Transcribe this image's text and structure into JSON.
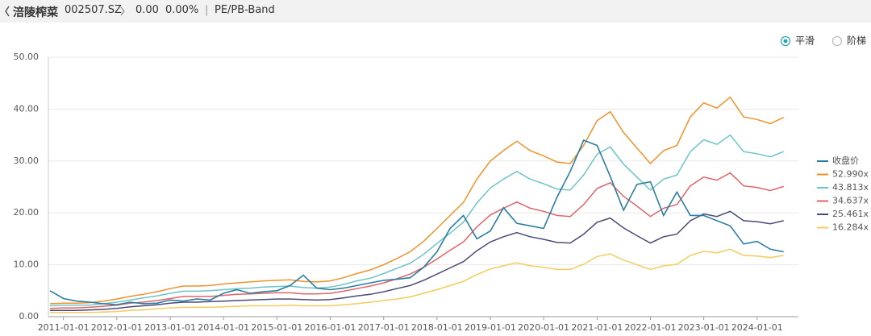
{
  "header": {
    "name": "涪陵榨菜",
    "code": "002507.SZ",
    "change": "0.00",
    "change_pct": "0.00%",
    "tab": "PE/PB-Band"
  },
  "options": {
    "smooth": "平滑",
    "step": "阶梯"
  },
  "chart_data": {
    "type": "line",
    "x": [
      "2010-10-01",
      "2011-01-01",
      "2011-04-01",
      "2011-07-01",
      "2011-10-01",
      "2012-01-01",
      "2012-04-01",
      "2012-07-01",
      "2012-10-01",
      "2013-01-01",
      "2013-04-01",
      "2013-07-01",
      "2013-10-01",
      "2014-01-01",
      "2014-04-01",
      "2014-07-01",
      "2014-10-01",
      "2015-01-01",
      "2015-04-01",
      "2015-07-01",
      "2015-10-01",
      "2016-01-01",
      "2016-04-01",
      "2016-07-01",
      "2016-10-01",
      "2017-01-01",
      "2017-04-01",
      "2017-07-01",
      "2017-10-01",
      "2018-01-01",
      "2018-04-01",
      "2018-07-01",
      "2018-10-01",
      "2019-01-01",
      "2019-04-01",
      "2019-07-01",
      "2019-10-01",
      "2020-01-01",
      "2020-04-01",
      "2020-07-01",
      "2020-10-01",
      "2021-01-01",
      "2021-04-01",
      "2021-07-01",
      "2021-10-01",
      "2022-01-01",
      "2022-04-01",
      "2022-07-01",
      "2022-10-01",
      "2023-01-01",
      "2023-04-01",
      "2023-07-01",
      "2023-10-01",
      "2024-01-01",
      "2024-04-01",
      "2024-07-01"
    ],
    "xlim": [
      "2010-09-20",
      "2024-10-10"
    ],
    "xticks": [
      "2011-01-01",
      "2012-01-01",
      "2013-01-01",
      "2014-01-01",
      "2015-01-01",
      "2016-01-01",
      "2017-01-01",
      "2018-01-01",
      "2019-01-01",
      "2020-01-01",
      "2021-01-01",
      "2022-01-01",
      "2023-01-01",
      "2024-01-01"
    ],
    "ylim": [
      0,
      50
    ],
    "yticks": [
      {
        "value": 0,
        "label": "0.00"
      },
      {
        "value": 10,
        "label": "10.00"
      },
      {
        "value": 20,
        "label": "20.00"
      },
      {
        "value": 30,
        "label": "30.00"
      },
      {
        "value": 40,
        "label": "40.00"
      },
      {
        "value": 50,
        "label": "50.00"
      }
    ],
    "grid": true,
    "legend": "right",
    "series": [
      {
        "name": "收盘价",
        "color": "#2b7ea1",
        "values": [
          5.0,
          3.5,
          3.0,
          2.8,
          2.5,
          2.3,
          2.8,
          2.5,
          2.6,
          3.2,
          3.0,
          3.4,
          3.2,
          4.5,
          5.2,
          4.5,
          4.8,
          5.0,
          6.0,
          8.0,
          5.5,
          5.2,
          5.5,
          6.0,
          6.5,
          7.0,
          7.2,
          7.5,
          9.5,
          12.5,
          17.0,
          19.5,
          15.0,
          16.5,
          21.0,
          18.0,
          17.5,
          17.0,
          23.0,
          28.0,
          34.0,
          33.0,
          27.0,
          20.5,
          25.5,
          26.0,
          19.5,
          24.0,
          19.5,
          19.5,
          18.5,
          17.5,
          14.0,
          14.5,
          13.0,
          12.5
        ]
      },
      {
        "name": "52.990x",
        "color": "#f0922b",
        "values": [
          2.5,
          2.6,
          2.6,
          2.7,
          3.0,
          3.4,
          3.9,
          4.3,
          4.8,
          5.4,
          5.9,
          5.9,
          6.0,
          6.3,
          6.5,
          6.7,
          6.9,
          7.0,
          7.1,
          6.8,
          6.7,
          6.9,
          7.5,
          8.3,
          9.0,
          10.0,
          11.2,
          12.5,
          14.5,
          17.0,
          19.5,
          22.0,
          26.5,
          30.0,
          32.0,
          33.8,
          32.0,
          31.0,
          29.8,
          29.5,
          33.0,
          37.8,
          39.5,
          35.5,
          32.5,
          29.5,
          32.0,
          33.0,
          38.5,
          41.2,
          40.2,
          42.3,
          38.5,
          38.0,
          37.2,
          38.4
        ]
      },
      {
        "name": "43.813x",
        "color": "#6cc4c8",
        "values": [
          2.1,
          2.2,
          2.2,
          2.2,
          2.5,
          2.8,
          3.2,
          3.6,
          4.0,
          4.5,
          4.9,
          4.9,
          5.0,
          5.2,
          5.4,
          5.5,
          5.7,
          5.8,
          5.9,
          5.6,
          5.5,
          5.7,
          6.2,
          6.9,
          7.4,
          8.3,
          9.3,
          10.3,
          12.0,
          14.1,
          16.1,
          18.2,
          21.9,
          24.8,
          26.5,
          28.0,
          26.5,
          25.6,
          24.6,
          24.4,
          27.3,
          31.3,
          32.7,
          29.4,
          26.9,
          24.4,
          26.5,
          27.3,
          31.8,
          34.1,
          33.2,
          35.0,
          31.8,
          31.4,
          30.8,
          31.8
        ]
      },
      {
        "name": "34.637x",
        "color": "#e06468",
        "values": [
          1.6,
          1.7,
          1.7,
          1.8,
          2.0,
          2.2,
          2.6,
          2.8,
          3.1,
          3.5,
          3.9,
          3.9,
          3.9,
          4.1,
          4.3,
          4.4,
          4.5,
          4.6,
          4.6,
          4.4,
          4.4,
          4.5,
          4.9,
          5.4,
          5.9,
          6.5,
          7.3,
          8.2,
          9.5,
          11.1,
          12.8,
          14.4,
          17.3,
          19.6,
          20.9,
          22.1,
          20.9,
          20.3,
          19.5,
          19.3,
          21.6,
          24.7,
          25.8,
          23.2,
          21.3,
          19.3,
          20.9,
          21.6,
          25.2,
          26.9,
          26.3,
          27.7,
          25.2,
          24.9,
          24.3,
          25.1
        ]
      },
      {
        "name": "25.461x",
        "color": "#4a4a78",
        "values": [
          1.2,
          1.2,
          1.2,
          1.3,
          1.4,
          1.6,
          1.9,
          2.1,
          2.3,
          2.6,
          2.8,
          2.8,
          2.9,
          3.0,
          3.1,
          3.2,
          3.3,
          3.4,
          3.4,
          3.3,
          3.2,
          3.3,
          3.6,
          4.0,
          4.3,
          4.8,
          5.4,
          6.0,
          7.0,
          8.2,
          9.4,
          10.6,
          12.7,
          14.4,
          15.4,
          16.2,
          15.4,
          14.9,
          14.3,
          14.2,
          15.9,
          18.2,
          19.0,
          17.1,
          15.6,
          14.2,
          15.4,
          15.9,
          18.5,
          19.8,
          19.3,
          20.3,
          18.5,
          18.3,
          17.9,
          18.5
        ]
      },
      {
        "name": "16.284x",
        "color": "#f2cc5c",
        "values": [
          0.8,
          0.8,
          0.8,
          0.8,
          0.9,
          1.0,
          1.2,
          1.3,
          1.5,
          1.7,
          1.8,
          1.8,
          1.8,
          1.9,
          2.0,
          2.1,
          2.1,
          2.1,
          2.2,
          2.1,
          2.1,
          2.1,
          2.3,
          2.5,
          2.8,
          3.1,
          3.4,
          3.8,
          4.5,
          5.2,
          6.0,
          6.8,
          8.1,
          9.2,
          9.8,
          10.4,
          9.8,
          9.5,
          9.1,
          9.1,
          10.1,
          11.6,
          12.1,
          10.9,
          10.0,
          9.1,
          9.8,
          10.1,
          11.8,
          12.6,
          12.3,
          13.0,
          11.8,
          11.7,
          11.4,
          11.8
        ]
      }
    ]
  }
}
